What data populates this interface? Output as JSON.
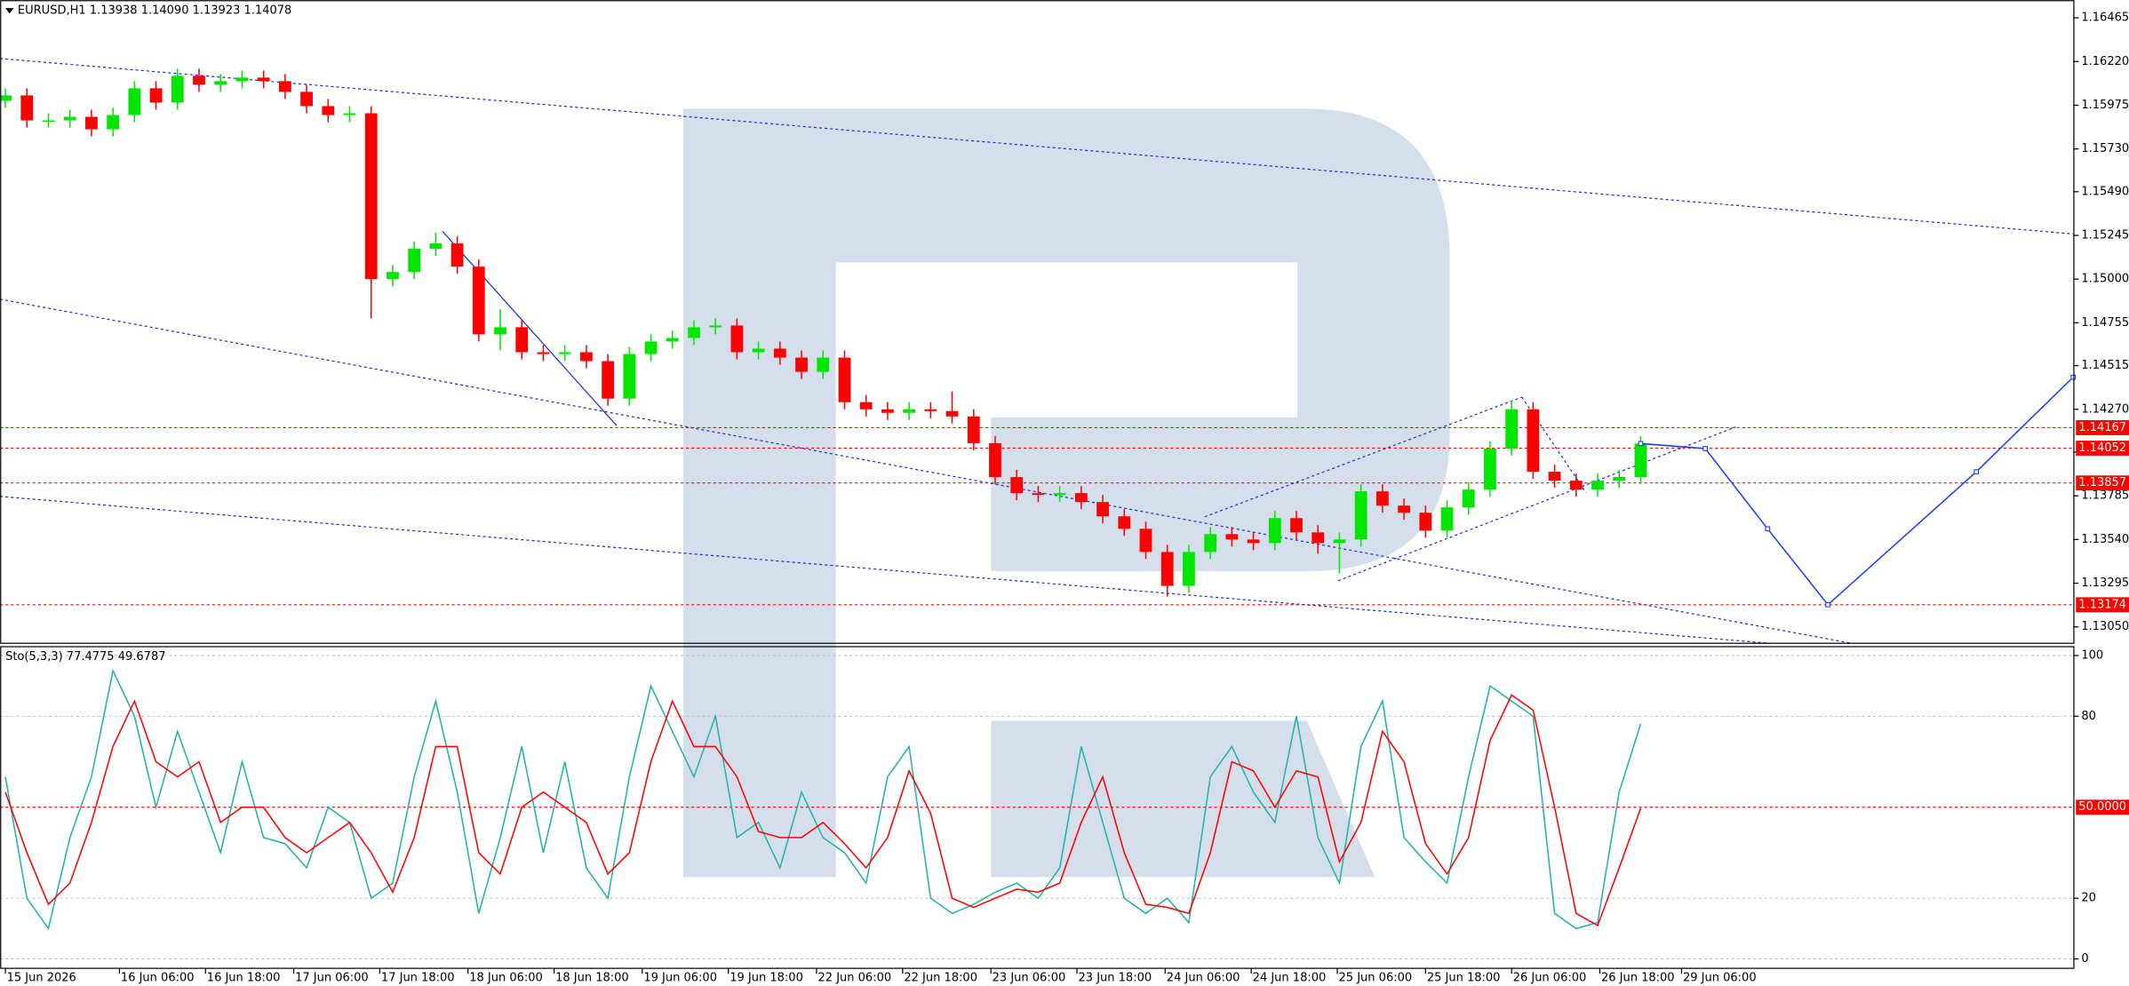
{
  "chart_data": [
    {
      "type": "candlestick",
      "title": "EURUSD,H1 1.13938 1.14090 1.13923 1.14078",
      "xlim": [
        -0.25,
        96.1
      ],
      "ylim": [
        1.12958,
        1.16565
      ],
      "yticks": [
        1.16465,
        {
          "value": 1.1622,
          "label": "1.16220"
        },
        1.15975,
        {
          "value": 1.1573,
          "label": "1.15730"
        },
        {
          "value": 1.1549,
          "label": "1.15490"
        },
        1.15245,
        {
          "value": 1.15,
          "label": "1.15000"
        },
        1.14755,
        1.14515,
        {
          "value": 1.1427,
          "label": "1.14270"
        },
        {
          "value": 1.1403,
          "label": "1.14030"
        },
        1.13785,
        {
          "value": 1.1354,
          "label": "1.13540"
        },
        1.13295,
        {
          "value": 1.1305,
          "label": "1.13050"
        }
      ],
      "up_color": "#00e600",
      "down_color": "#ff0000",
      "open": [
        1.16,
        1.1603,
        1.1589,
        1.1589,
        1.1591,
        1.1584,
        1.1592,
        1.1607,
        1.1599,
        1.1614,
        1.1609,
        1.1611,
        1.1613,
        1.1611,
        1.1605,
        1.1597,
        1.1592,
        1.1593,
        1.15,
        1.1504,
        1.1517,
        1.152,
        1.1507,
        1.1469,
        1.1473,
        1.1459,
        1.1458,
        1.1459,
        1.1454,
        1.1433,
        1.1458,
        1.1465,
        1.1467,
        1.1473,
        1.1474,
        1.1459,
        1.1461,
        1.1456,
        1.1448,
        1.1456,
        1.1431,
        1.1427,
        1.1425,
        1.1427,
        1.1426,
        1.1423,
        1.1408,
        1.1389,
        1.138,
        1.1379,
        1.138,
        1.1375,
        1.1367,
        1.136,
        1.1347,
        1.1328,
        1.1347,
        1.1357,
        1.1354,
        1.1352,
        1.1366,
        1.1358,
        1.1352,
        1.1354,
        1.1381,
        1.1373,
        1.1369,
        1.1359,
        1.1372,
        1.1382,
        1.1405,
        1.1427,
        1.1392,
        1.1387,
        1.1382,
        1.1387,
        1.1389
      ],
      "high": [
        1.1607,
        1.1607,
        1.1593,
        1.1595,
        1.1595,
        1.1596,
        1.1611,
        1.1611,
        1.1618,
        1.1618,
        1.1615,
        1.1617,
        1.1617,
        1.1615,
        1.1609,
        1.1601,
        1.1597,
        1.1597,
        1.1508,
        1.1521,
        1.1526,
        1.1524,
        1.1511,
        1.1483,
        1.1477,
        1.1463,
        1.1463,
        1.1463,
        1.1458,
        1.1462,
        1.1469,
        1.1471,
        1.1477,
        1.1478,
        1.1478,
        1.1465,
        1.1465,
        1.146,
        1.146,
        1.146,
        1.1435,
        1.1431,
        1.1431,
        1.1431,
        1.1437,
        1.1427,
        1.1412,
        1.1393,
        1.1384,
        1.1384,
        1.1384,
        1.1379,
        1.1371,
        1.1364,
        1.1351,
        1.1351,
        1.1361,
        1.1361,
        1.1358,
        1.137,
        1.137,
        1.1362,
        1.1358,
        1.1385,
        1.1385,
        1.1377,
        1.1373,
        1.1376,
        1.1386,
        1.1409,
        1.1432,
        1.1431,
        1.1396,
        1.1391,
        1.1391,
        1.1393,
        1.1412
      ],
      "low": [
        1.1596,
        1.1585,
        1.1585,
        1.1585,
        1.158,
        1.158,
        1.1588,
        1.1595,
        1.1595,
        1.1605,
        1.1605,
        1.1607,
        1.1607,
        1.1601,
        1.1593,
        1.1588,
        1.1588,
        1.1478,
        1.1496,
        1.15,
        1.1513,
        1.1503,
        1.1465,
        1.146,
        1.1455,
        1.1454,
        1.1454,
        1.145,
        1.1429,
        1.1429,
        1.1454,
        1.1461,
        1.1463,
        1.1469,
        1.1455,
        1.1455,
        1.1452,
        1.1444,
        1.1444,
        1.1427,
        1.1423,
        1.1421,
        1.1421,
        1.1422,
        1.1419,
        1.1404,
        1.1385,
        1.1376,
        1.1375,
        1.1375,
        1.1371,
        1.1363,
        1.1356,
        1.1343,
        1.1322,
        1.1324,
        1.1343,
        1.135,
        1.1348,
        1.1348,
        1.1354,
        1.1346,
        1.1335,
        1.135,
        1.1369,
        1.1365,
        1.1355,
        1.1355,
        1.1368,
        1.1378,
        1.1401,
        1.1388,
        1.1383,
        1.1378,
        1.1378,
        1.1383,
        1.1385
      ],
      "close": [
        1.1603,
        1.1589,
        1.1589,
        1.1591,
        1.1584,
        1.1592,
        1.1607,
        1.1599,
        1.1614,
        1.1609,
        1.1611,
        1.1613,
        1.1611,
        1.1605,
        1.1597,
        1.1592,
        1.1593,
        1.15,
        1.1504,
        1.1517,
        1.152,
        1.1507,
        1.1469,
        1.1473,
        1.1459,
        1.1458,
        1.1459,
        1.1454,
        1.1433,
        1.1458,
        1.1465,
        1.1467,
        1.1473,
        1.1474,
        1.1459,
        1.1461,
        1.1456,
        1.1448,
        1.1456,
        1.1431,
        1.1427,
        1.1425,
        1.1427,
        1.1426,
        1.1423,
        1.1408,
        1.1389,
        1.138,
        1.1379,
        1.138,
        1.1375,
        1.1367,
        1.136,
        1.1347,
        1.1328,
        1.1347,
        1.1357,
        1.1354,
        1.1352,
        1.1366,
        1.1358,
        1.1352,
        1.1354,
        1.1381,
        1.1373,
        1.1369,
        1.1359,
        1.1372,
        1.1382,
        1.1405,
        1.1427,
        1.1392,
        1.1387,
        1.1382,
        1.1387,
        1.1389,
        1.14078
      ],
      "levels": [
        1.14167,
        1.14052,
        1.13857,
        1.13174
      ],
      "level_color": "#ff0000",
      "forecast": {
        "x": [
          76,
          79.0,
          81.9,
          84.7,
          91.6,
          96.1
        ],
        "values": [
          1.14078,
          1.1405,
          1.136,
          1.13174,
          1.1392,
          1.1445
        ],
        "color": "#1a3cff"
      }
    },
    {
      "type": "line",
      "title": "Sto(5,3,3) 77.4775 49.6787",
      "xlim": [
        -0.25,
        96.1
      ],
      "ylim": [
        -3.1,
        102.7
      ],
      "yticks": [
        100,
        80,
        20,
        0
      ],
      "grid": true,
      "levels": [
        {
          "value": 50,
          "label": "50.0000"
        }
      ],
      "level_color": "#ff0000",
      "xticks": [
        {
          "value": 0,
          "label": "15 Jun 2026"
        },
        {
          "value": 5.3,
          "label": "16 Jun 06:00"
        },
        {
          "value": 9.3,
          "label": "16 Jun 18:00"
        },
        {
          "value": 13.4,
          "label": "17 Jun 06:00"
        },
        {
          "value": 17.4,
          "label": "17 Jun 18:00"
        },
        {
          "value": 21.5,
          "label": "18 Jun 06:00"
        },
        {
          "value": 25.5,
          "label": "18 Jun 18:00"
        },
        {
          "value": 29.6,
          "label": "19 Jun 06:00"
        },
        {
          "value": 33.6,
          "label": "19 Jun 18:00"
        },
        {
          "value": 37.7,
          "label": "22 Jun 06:00"
        },
        {
          "value": 41.7,
          "label": "22 Jun 18:00"
        },
        {
          "value": 45.8,
          "label": "23 Jun 06:00"
        },
        {
          "value": 49.8,
          "label": "23 Jun 18:00"
        },
        {
          "value": 53.9,
          "label": "24 Jun 06:00"
        },
        {
          "value": 57.9,
          "label": "24 Jun 18:00"
        },
        {
          "value": 61.9,
          "label": "25 Jun 06:00"
        },
        {
          "value": 66.0,
          "label": "25 Jun 18:00"
        },
        {
          "value": 70.0,
          "label": "26 Jun 06:00"
        },
        {
          "value": 74.1,
          "label": "26 Jun 18:00"
        },
        {
          "value": 77.9,
          "label": "29 Jun 06:00"
        }
      ],
      "series": [
        {
          "color": "#20b2aa",
          "values": [
            60,
            20,
            10,
            40,
            60,
            95,
            80,
            50,
            75,
            55,
            35,
            65,
            40,
            38,
            30,
            50,
            45,
            20,
            25,
            60,
            85,
            55,
            15,
            40,
            70,
            35,
            65,
            30,
            20,
            60,
            90,
            75,
            60,
            80,
            40,
            45,
            30,
            55,
            40,
            35,
            25,
            60,
            70,
            20,
            15,
            18,
            22,
            25,
            20,
            30,
            70,
            45,
            20,
            15,
            20,
            12,
            60,
            70,
            55,
            45,
            80,
            40,
            25,
            70,
            85,
            40,
            32,
            25,
            60,
            90,
            85,
            80,
            15,
            10,
            12,
            55,
            77.4775
          ]
        },
        {
          "color": "#ff0000",
          "values": [
            55,
            35,
            18,
            25,
            45,
            70,
            85,
            65,
            60,
            65,
            45,
            50,
            50,
            40,
            35,
            40,
            45,
            35,
            22,
            40,
            70,
            70,
            35,
            28,
            50,
            55,
            50,
            45,
            28,
            35,
            65,
            85,
            70,
            70,
            60,
            42,
            40,
            40,
            45,
            38,
            30,
            40,
            62,
            48,
            20,
            17,
            20,
            23,
            22,
            25,
            45,
            60,
            35,
            18,
            17,
            15,
            35,
            65,
            62,
            50,
            62,
            60,
            32,
            45,
            75,
            65,
            38,
            28,
            40,
            72,
            87,
            82,
            50,
            15,
            11,
            30,
            49.6787
          ]
        }
      ]
    }
  ]
}
